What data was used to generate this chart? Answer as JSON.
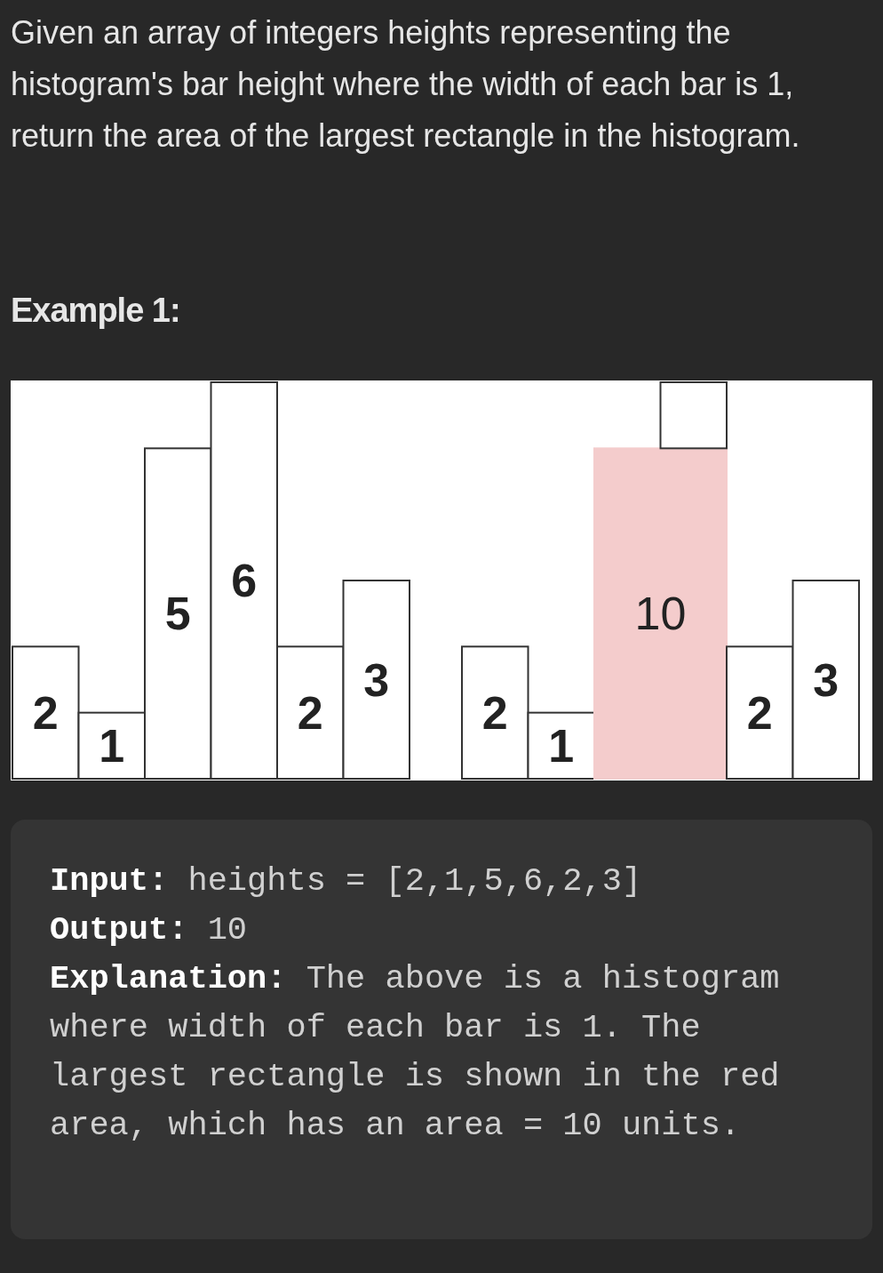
{
  "chart_data": [
    {
      "type": "bar",
      "title": "Given an array of integers heights representing the histogram's bar height where the width of each bar is 1, return the area of the largest rectangle in the histogram.",
      "subtitle": "Example 1:",
      "categories": [
        null,
        null,
        null,
        null,
        null,
        null
      ],
      "ylim": [
        0,
        6
      ],
      "data_labels": true,
      "series": [
        {
          "color": "#ffffff",
          "values": [
            2,
            1,
            5,
            6,
            2,
            3
          ]
        }
      ]
    },
    {
      "type": "bar",
      "categories": [
        null,
        null,
        null,
        null,
        null,
        null
      ],
      "ylim": [
        0,
        6
      ],
      "stacked": true,
      "series": [
        {
          "colors": [
            "#ffffff",
            "#ffffff",
            "#f4cccc",
            "#f4cccc",
            "#ffffff",
            "#ffffff"
          ],
          "values": [
            2,
            1,
            5,
            5,
            2,
            3
          ],
          "value_labels": [
            "2",
            "1",
            null,
            null,
            "2",
            "3"
          ]
        },
        {
          "color": "#ffffff",
          "values": [
            null,
            null,
            null,
            1,
            null,
            null
          ]
        }
      ],
      "annotations": [
        "10",
        "Input: heights = [2,1,5,6,2,3]",
        "Output: 10",
        "Explanation: The above is a histogram where width of each bar is 1. The largest rectangle is shown in the red area, which has an area = 10 units."
      ]
    }
  ]
}
